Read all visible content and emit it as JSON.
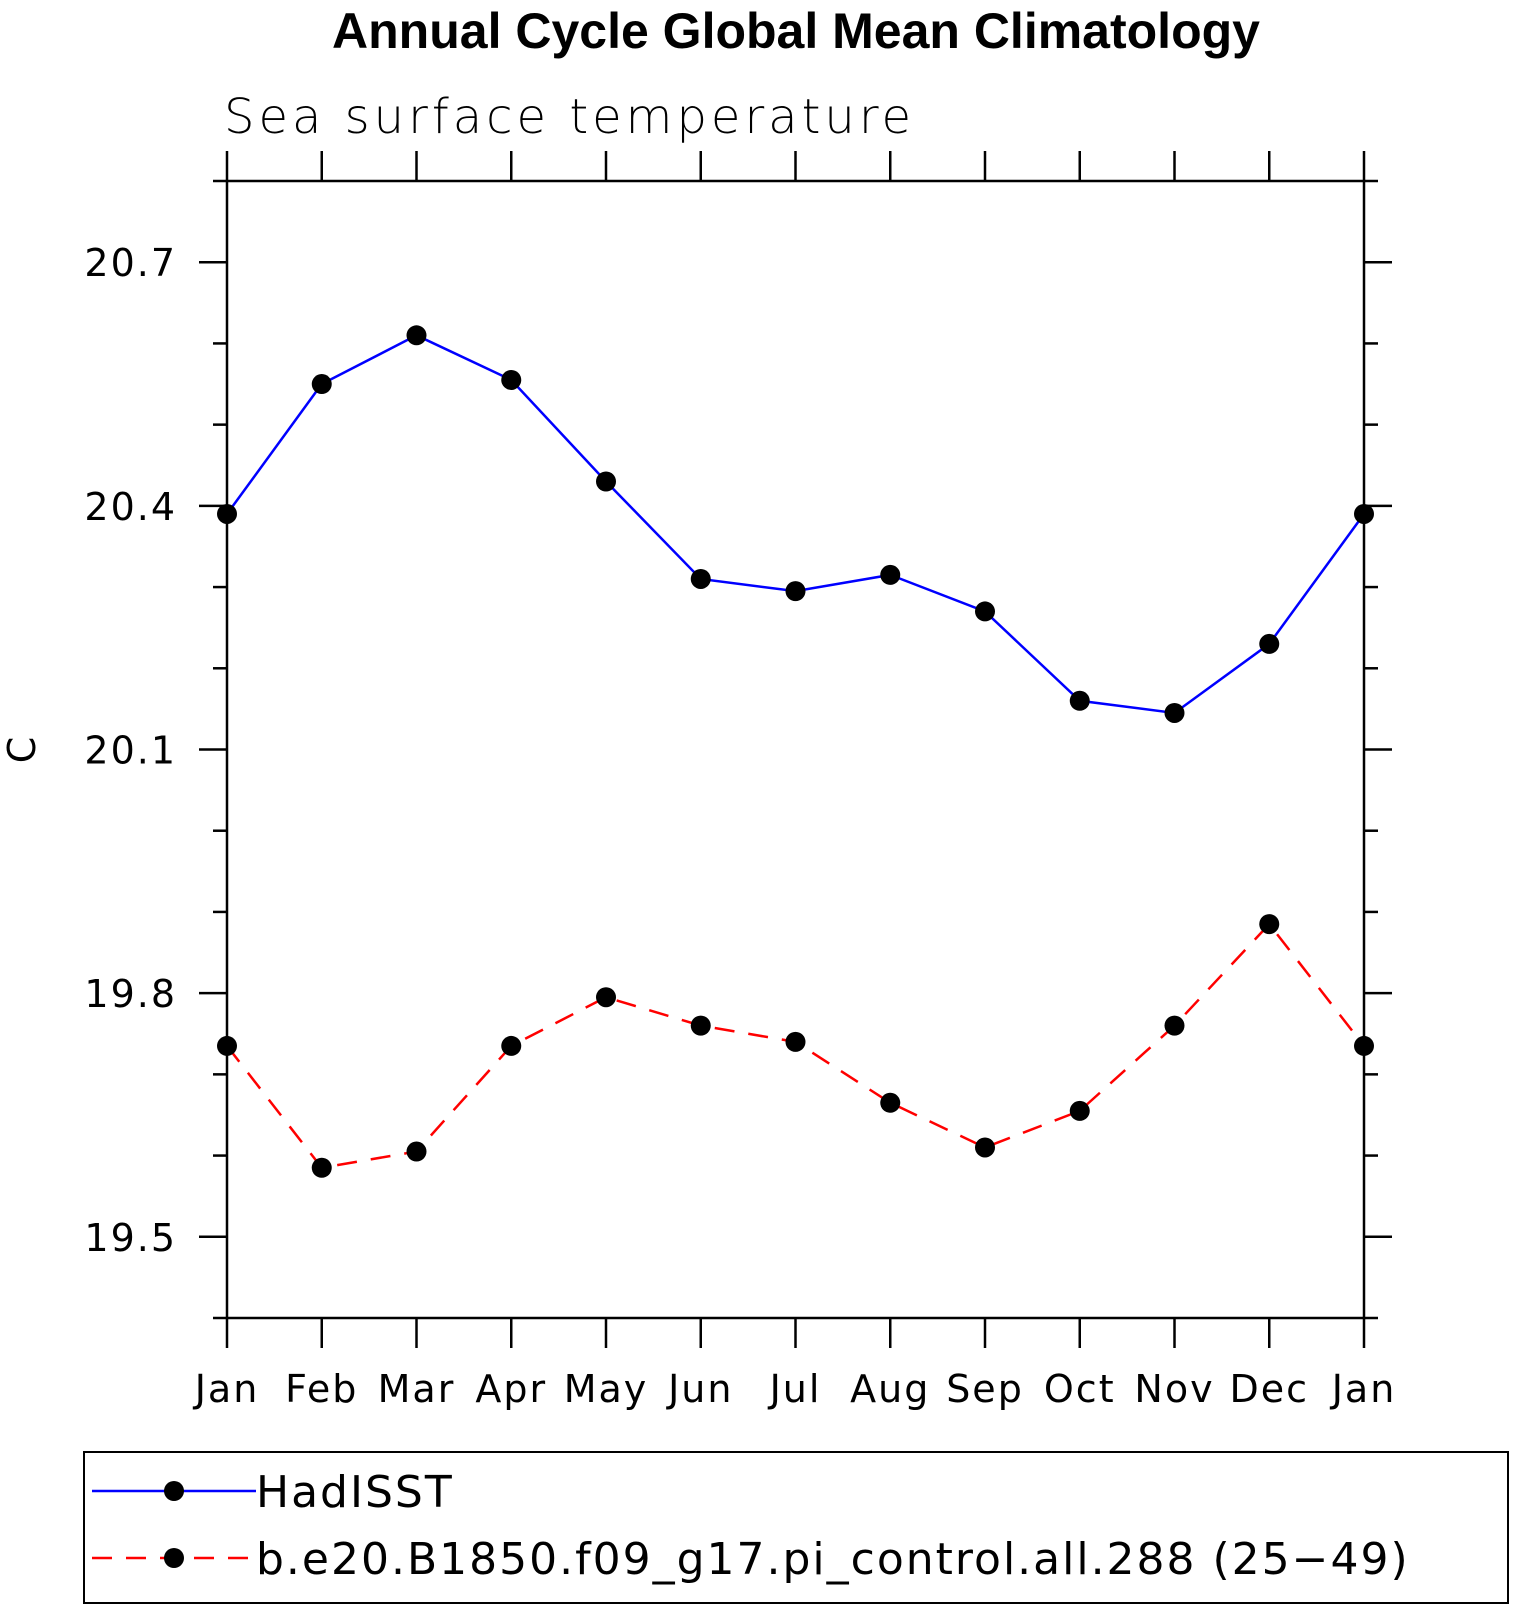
{
  "chart_data": {
    "type": "line",
    "title": "Annual Cycle Global Mean Climatology",
    "subtitle": "Sea surface temperature",
    "xlabel": "",
    "ylabel": "C",
    "categories": [
      "Jan",
      "Feb",
      "Mar",
      "Apr",
      "May",
      "Jun",
      "Jul",
      "Aug",
      "Sep",
      "Oct",
      "Nov",
      "Dec",
      "Jan"
    ],
    "ylim": [
      19.4,
      20.8
    ],
    "yticks": [
      "20.7",
      "20.4",
      "20.1",
      "19.8",
      "19.5"
    ],
    "grid": false,
    "legend_position": "bottom",
    "series": [
      {
        "name": "HadISST",
        "color": "#0000ff",
        "line_style": "solid",
        "marker": "filled-circle",
        "values": [
          20.39,
          20.55,
          20.61,
          20.555,
          20.43,
          20.31,
          20.295,
          20.315,
          20.27,
          20.16,
          20.145,
          20.23,
          20.39
        ]
      },
      {
        "name": "b.e20.B1850.f09_g17.pi_control.all.288 (25−49)",
        "color": "#ff0000",
        "line_style": "dashed",
        "marker": "filled-circle",
        "values": [
          19.735,
          19.585,
          19.605,
          19.735,
          19.795,
          19.76,
          19.74,
          19.665,
          19.61,
          19.655,
          19.76,
          19.885,
          19.735
        ]
      }
    ]
  }
}
